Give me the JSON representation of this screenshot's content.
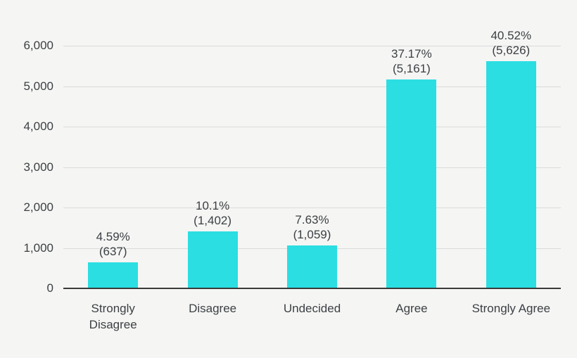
{
  "chart_data": {
    "type": "bar",
    "title": "",
    "xlabel": "",
    "ylabel": "",
    "categories": [
      "Strongly Disagree",
      "Disagree",
      "Undecided",
      "Agree",
      "Strongly Agree"
    ],
    "values": [
      637,
      1402,
      1059,
      5161,
      5626
    ],
    "percentages": [
      4.59,
      10.1,
      7.63,
      37.17,
      40.52
    ],
    "bar_labels": [
      "4.59%\n(637)",
      "10.1%\n(1,402)",
      "7.63%\n(1,059)",
      "37.17%\n(5,161)",
      "40.52%\n(5,626)"
    ],
    "y_ticks": [
      0,
      1000,
      2000,
      3000,
      4000,
      5000,
      6000
    ],
    "y_tick_labels": [
      "0",
      "1,000",
      "2,000",
      "3,000",
      "4,000",
      "5,000",
      "6,000"
    ],
    "ylim": [
      0,
      6000
    ],
    "grid": true,
    "legend": false,
    "legend_position": "none",
    "bar_color": "#2BDEE2",
    "background_color": "#F5F5F4",
    "gridline_color": "#DBDBDB",
    "axis_line_color": "#3A3A3A",
    "text_color": "#3C4043"
  }
}
